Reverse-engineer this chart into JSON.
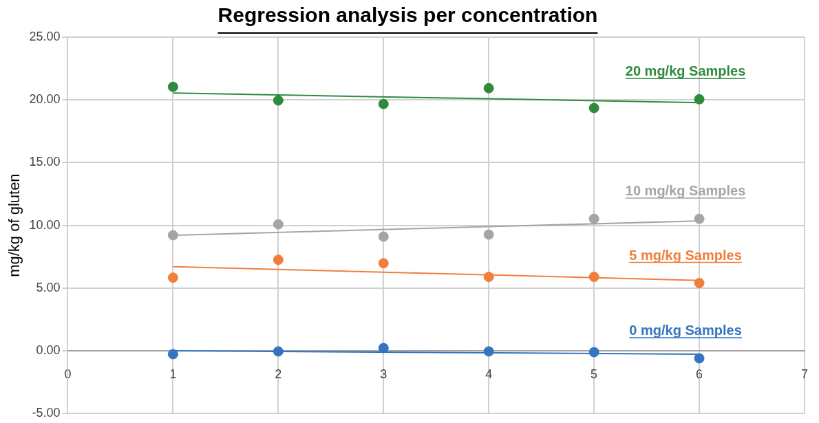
{
  "chart_data": {
    "type": "scatter",
    "title": "Regression analysis per concentration",
    "ylabel": "mg/kg of gluten",
    "xlim": [
      0,
      7
    ],
    "xticks": [
      0,
      1,
      2,
      3,
      4,
      5,
      6,
      7
    ],
    "ylim": [
      -5,
      25
    ],
    "yticks": [
      {
        "value": -5,
        "label": "-5.00"
      },
      {
        "value": 0,
        "label": "0.00"
      },
      {
        "value": 5,
        "label": "5.00"
      },
      {
        "value": 10,
        "label": "10.00"
      },
      {
        "value": 15,
        "label": "15.00"
      },
      {
        "value": 20,
        "label": "20.00"
      },
      {
        "value": 25,
        "label": "25.00"
      }
    ],
    "grid": true,
    "legend": false,
    "marker": "circle",
    "line_style": "solid",
    "series": [
      {
        "name": "20 mg/kg Samples",
        "color": "#2e8b3e",
        "x": [
          1,
          2,
          3,
          4,
          5,
          6
        ],
        "values": [
          21.04,
          19.95,
          19.67,
          20.93,
          19.35,
          20.05
        ]
      },
      {
        "type": "line",
        "marker": "none",
        "color": "#2e8b3e",
        "x": [
          1,
          6
        ],
        "values": [
          20.55,
          19.78
        ]
      },
      {
        "name": "10 mg/kg Samples",
        "color": "#a5a5a8",
        "x": [
          1,
          2,
          3,
          4,
          5,
          6
        ],
        "values": [
          9.21,
          10.08,
          9.1,
          9.26,
          10.52,
          10.52
        ]
      },
      {
        "type": "line",
        "marker": "none",
        "color": "#a5a5a8",
        "x": [
          1,
          6
        ],
        "values": [
          9.21,
          10.35
        ]
      },
      {
        "name": "5 mg/kg Samples",
        "color": "#f07f3c",
        "x": [
          1,
          2,
          3,
          4,
          5,
          6
        ],
        "values": [
          5.83,
          7.25,
          6.98,
          5.89,
          5.89,
          5.4
        ]
      },
      {
        "type": "line",
        "marker": "none",
        "color": "#f07f3c",
        "x": [
          1,
          6
        ],
        "values": [
          6.7,
          5.61
        ]
      },
      {
        "name": "0 mg/kg Samples",
        "color": "#3574bf",
        "x": [
          1,
          2,
          3,
          4,
          5,
          6
        ],
        "values": [
          -0.27,
          -0.05,
          0.22,
          -0.05,
          -0.11,
          -0.6
        ]
      },
      {
        "type": "line",
        "marker": "none",
        "color": "#3574bf",
        "x": [
          1,
          6
        ],
        "values": [
          0,
          -0.27
        ]
      }
    ]
  }
}
